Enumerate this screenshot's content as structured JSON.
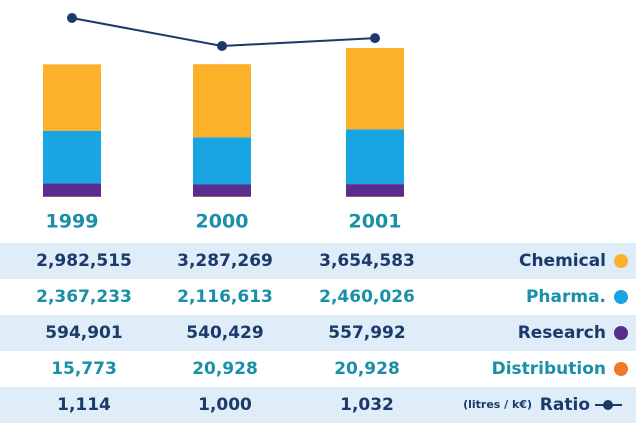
{
  "chart_data": {
    "type": "bar",
    "stacked": true,
    "categories": [
      "1999",
      "2000",
      "2001"
    ],
    "series": [
      {
        "name": "Chemical",
        "color": "#fbb12a",
        "values": [
          2982515,
          3287269,
          3654583
        ],
        "value_labels": [
          "2,982,515",
          "3,287,269",
          "3,654,583"
        ]
      },
      {
        "name": "Pharma.",
        "color": "#19a4e2",
        "values": [
          2367233,
          2116613,
          2460026
        ],
        "value_labels": [
          "2,367,233",
          "2,116,613",
          "2,460,026"
        ]
      },
      {
        "name": "Research",
        "color": "#5a2d8c",
        "values": [
          594901,
          540429,
          557992
        ],
        "value_labels": [
          "594,901",
          "540,429",
          "557,992"
        ]
      },
      {
        "name": "Distribution",
        "color": "#f07a2a",
        "values": [
          15773,
          20928,
          20928
        ],
        "value_labels": [
          "15,773",
          "20,928",
          "20,928"
        ]
      },
      {
        "name": "Ratio",
        "unit": "(litres / k€)",
        "type": "line",
        "color": "#1b3a6b",
        "values": [
          1114,
          1000,
          1032
        ],
        "value_labels": [
          "1,114",
          "1,000",
          "1,032"
        ]
      }
    ]
  }
}
